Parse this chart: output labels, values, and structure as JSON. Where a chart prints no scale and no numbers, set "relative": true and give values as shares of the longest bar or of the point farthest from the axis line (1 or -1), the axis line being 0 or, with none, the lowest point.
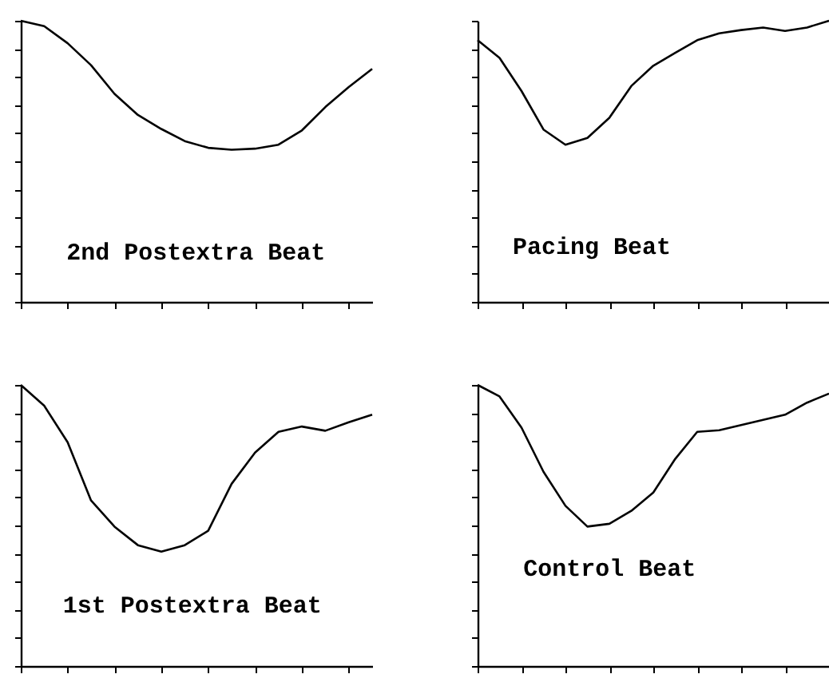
{
  "chart_data": [
    {
      "type": "line",
      "relative": true,
      "categories": [
        null,
        null,
        null,
        null,
        null,
        null,
        null,
        null,
        null,
        null,
        null,
        null,
        null,
        null,
        null,
        null
      ],
      "series": [
        {
          "color": "#000000",
          "values": [
            1,
            0.981,
            0.92,
            0.842,
            0.74,
            0.665,
            0.615,
            0.572,
            0.548,
            0.541,
            0.545,
            0.559,
            0.61,
            0.693,
            0.764,
            0.829
          ]
        }
      ],
      "annotations": [
        "2nd Postextra Beat"
      ],
      "tick_labels": false,
      "line_style": "solid"
    },
    {
      "type": "line",
      "relative": true,
      "categories": [
        null,
        null,
        null,
        null,
        null,
        null,
        null,
        null,
        null,
        null,
        null,
        null,
        null,
        null,
        null,
        null,
        null
      ],
      "series": [
        {
          "color": "#000000",
          "values": [
            0.931,
            0.868,
            0.75,
            0.613,
            0.559,
            0.583,
            0.655,
            0.768,
            0.84,
            0.886,
            0.931,
            0.955,
            0.967,
            0.976,
            0.964,
            0.976,
            1
          ]
        }
      ],
      "annotations": [
        "Pacing Beat"
      ],
      "tick_labels": false,
      "line_style": "solid"
    },
    {
      "type": "line",
      "relative": true,
      "categories": [
        null,
        null,
        null,
        null,
        null,
        null,
        null,
        null,
        null,
        null,
        null,
        null,
        null,
        null,
        null,
        null
      ],
      "series": [
        {
          "color": "#000000",
          "values": [
            1,
            0.926,
            0.796,
            0.589,
            0.496,
            0.43,
            0.407,
            0.43,
            0.481,
            0.648,
            0.759,
            0.833,
            0.852,
            0.837,
            0.867,
            0.894
          ]
        }
      ],
      "annotations": [
        "1st Postextra Beat"
      ],
      "tick_labels": false,
      "line_style": "solid"
    },
    {
      "type": "line",
      "relative": true,
      "categories": [
        null,
        null,
        null,
        null,
        null,
        null,
        null,
        null,
        null,
        null,
        null,
        null,
        null,
        null,
        null,
        null,
        null
      ],
      "series": [
        {
          "color": "#000000",
          "values": [
            1,
            0.959,
            0.848,
            0.691,
            0.57,
            0.496,
            0.506,
            0.552,
            0.617,
            0.737,
            0.833,
            0.839,
            0.857,
            0.876,
            0.894,
            0.937,
            0.969
          ]
        }
      ],
      "annotations": [
        "Control Beat"
      ],
      "tick_labels": false,
      "line_style": "solid"
    }
  ]
}
